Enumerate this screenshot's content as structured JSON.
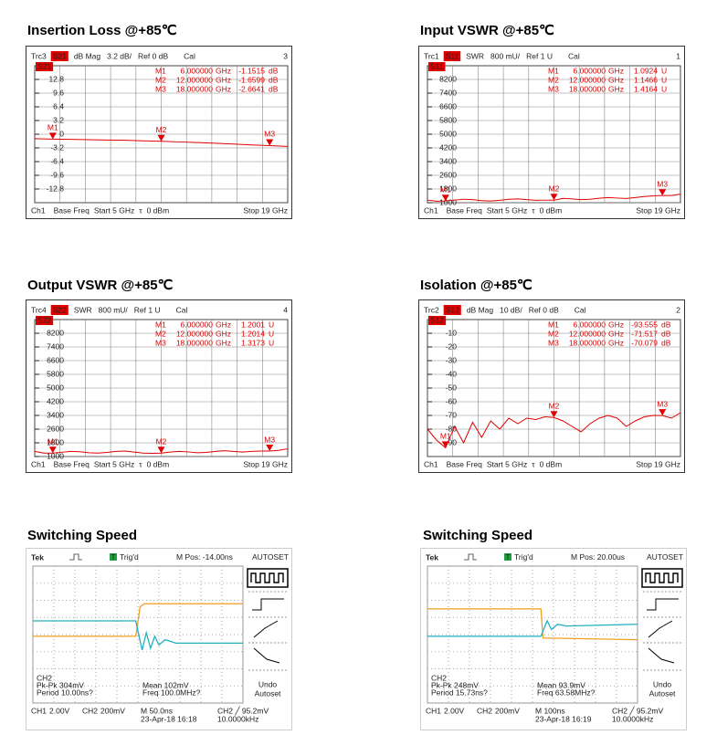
{
  "chart_data": [
    {
      "type": "line",
      "title": "Insertion Loss @+85℃",
      "header": {
        "trace": "Trc3",
        "format": "dB Mag",
        "scale": "3.2 dB/",
        "ref": "Ref 0 dB",
        "cal": "Cal",
        "number": "3"
      },
      "footer": [
        "Ch1",
        "Base Freq",
        "Start 5 GHz",
        "τ",
        "0 dBm",
        "Stop 19 GHz"
      ],
      "markers": [
        {
          "name": "M1",
          "x": 6,
          "x_label": "6.000000",
          "x_unit": "GHz",
          "y": -1.1515,
          "y_unit": "dB"
        },
        {
          "name": "M2",
          "x": 12,
          "x_label": "12.000000",
          "x_unit": "GHz",
          "y": -1.6599,
          "y_unit": "dB"
        },
        {
          "name": "M3",
          "x": 18,
          "x_label": "18.000000",
          "x_unit": "GHz",
          "y": -2.6641,
          "y_unit": "dB"
        }
      ],
      "xlim": [
        5,
        19
      ],
      "ylim": [
        -16,
        16
      ],
      "yticks": [
        12.8,
        9.6,
        6.4,
        3.2,
        0,
        -3.2,
        -6.4,
        -9.6,
        -12.8
      ],
      "x": [
        5,
        6,
        7,
        8,
        9,
        10,
        11,
        12,
        13,
        14,
        15,
        16,
        17,
        18,
        19
      ],
      "series": [
        {
          "name": "S21",
          "color": "#e00000",
          "values": [
            -1.05,
            -1.15,
            -1.2,
            -1.28,
            -1.35,
            -1.42,
            -1.55,
            -1.66,
            -1.8,
            -1.95,
            -2.1,
            -2.3,
            -2.5,
            -2.66,
            -2.85
          ]
        }
      ]
    },
    {
      "type": "line",
      "title": "Input VSWR @+85℃",
      "header": {
        "trace": "Trc1",
        "format": "SWR",
        "scale": "800 mU/",
        "ref": "Ref 1 U",
        "cal": "Cal",
        "number": "1"
      },
      "footer": [
        "Ch1",
        "Base Freq",
        "Start 5 GHz",
        "τ",
        "0 dBm",
        "Stop 19 GHz"
      ],
      "markers": [
        {
          "name": "M1",
          "x": 6,
          "x_label": "6.000000",
          "x_unit": "GHz",
          "y": 1.0924,
          "y_unit": "U"
        },
        {
          "name": "M2",
          "x": 12,
          "x_label": "12.000000",
          "x_unit": "GHz",
          "y": 1.1466,
          "y_unit": "U"
        },
        {
          "name": "M3",
          "x": 18,
          "x_label": "18.000000",
          "x_unit": "GHz",
          "y": 1.4164,
          "y_unit": "U"
        }
      ],
      "xlim": [
        5,
        19
      ],
      "ylim": [
        1,
        9
      ],
      "yticks": [
        {
          "value": 8.2,
          "label": "8200"
        },
        {
          "value": 7.4,
          "label": "7400"
        },
        {
          "value": 6.6,
          "label": "6600"
        },
        {
          "value": 5.8,
          "label": "5800"
        },
        {
          "value": 5,
          "label": "5000"
        },
        {
          "value": 4.2,
          "label": "4200"
        },
        {
          "value": 3.4,
          "label": "3400"
        },
        {
          "value": 2.6,
          "label": "2600"
        },
        {
          "value": 1.8,
          "label": "1800"
        },
        {
          "value": 1,
          "label": "1000"
        }
      ],
      "x": [
        5,
        5.5,
        6,
        6.5,
        7,
        7.5,
        8,
        8.5,
        9,
        9.5,
        10,
        10.5,
        11,
        11.5,
        12,
        12.5,
        13,
        13.5,
        14,
        14.5,
        15,
        15.5,
        16,
        16.5,
        17,
        17.5,
        18,
        18.5,
        19
      ],
      "series": [
        {
          "name": "S11",
          "color": "#e00000",
          "values": [
            1.15,
            1.09,
            1.1,
            1.15,
            1.2,
            1.18,
            1.12,
            1.1,
            1.14,
            1.2,
            1.22,
            1.18,
            1.14,
            1.15,
            1.15,
            1.25,
            1.22,
            1.18,
            1.2,
            1.26,
            1.3,
            1.27,
            1.25,
            1.3,
            1.36,
            1.4,
            1.42,
            1.42,
            1.5
          ]
        }
      ]
    },
    {
      "type": "line",
      "title": "Output VSWR @+85℃",
      "header": {
        "trace": "Trc4",
        "format": "SWR",
        "scale": "800 mU/",
        "ref": "Ref 1 U",
        "cal": "Cal",
        "number": "4"
      },
      "footer": [
        "Ch1",
        "Base Freq",
        "Start 5 GHz",
        "τ",
        "0 dBm",
        "Stop 19 GHz"
      ],
      "markers": [
        {
          "name": "M1",
          "x": 6,
          "x_label": "6.000000",
          "x_unit": "GHz",
          "y": 1.2001,
          "y_unit": "U"
        },
        {
          "name": "M2",
          "x": 12,
          "x_label": "12.000000",
          "x_unit": "GHz",
          "y": 1.2014,
          "y_unit": "U"
        },
        {
          "name": "M3",
          "x": 18,
          "x_label": "18.000000",
          "x_unit": "GHz",
          "y": 1.3173,
          "y_unit": "U"
        }
      ],
      "xlim": [
        5,
        19
      ],
      "ylim": [
        1,
        9
      ],
      "yticks": [
        {
          "value": 8.2,
          "label": "8200"
        },
        {
          "value": 7.4,
          "label": "7400"
        },
        {
          "value": 6.6,
          "label": "6600"
        },
        {
          "value": 5.8,
          "label": "5800"
        },
        {
          "value": 5,
          "label": "5000"
        },
        {
          "value": 4.2,
          "label": "4200"
        },
        {
          "value": 3.4,
          "label": "3400"
        },
        {
          "value": 2.6,
          "label": "2600"
        },
        {
          "value": 1.8,
          "label": "1800"
        },
        {
          "value": 1,
          "label": "1000"
        }
      ],
      "x": [
        5,
        5.5,
        6,
        6.5,
        7,
        7.5,
        8,
        8.5,
        9,
        9.5,
        10,
        10.5,
        11,
        11.5,
        12,
        12.5,
        13,
        13.5,
        14,
        14.5,
        15,
        15.5,
        16,
        16.5,
        17,
        17.5,
        18,
        18.5,
        19
      ],
      "series": [
        {
          "name": "S22",
          "color": "#e00000",
          "values": [
            1.3,
            1.2,
            1.2,
            1.25,
            1.3,
            1.28,
            1.22,
            1.2,
            1.24,
            1.3,
            1.32,
            1.26,
            1.2,
            1.19,
            1.2,
            1.26,
            1.3,
            1.27,
            1.22,
            1.24,
            1.3,
            1.34,
            1.3,
            1.26,
            1.3,
            1.32,
            1.32,
            1.36,
            1.45
          ]
        }
      ]
    },
    {
      "type": "line",
      "title": "Isolation @+85℃",
      "header": {
        "trace": "Trc2",
        "format": "dB Mag",
        "scale": "10 dB/",
        "ref": "Ref 0 dB",
        "cal": "Cal",
        "number": "2"
      },
      "footer": [
        "Ch1",
        "Base Freq",
        "Start 5 GHz",
        "τ",
        "0 dBm",
        "Stop 19 GHz"
      ],
      "markers": [
        {
          "name": "M1",
          "x": 6,
          "x_label": "6.000000",
          "x_unit": "GHz",
          "y": -93.555,
          "y_unit": "dB"
        },
        {
          "name": "M2",
          "x": 12,
          "x_label": "12.000000",
          "x_unit": "GHz",
          "y": -71.517,
          "y_unit": "dB"
        },
        {
          "name": "M3",
          "x": 18,
          "x_label": "18.000000",
          "x_unit": "GHz",
          "y": -70.079,
          "y_unit": "dB"
        }
      ],
      "xlim": [
        5,
        19
      ],
      "ylim": [
        -100,
        0
      ],
      "yticks": [
        -10,
        -20,
        -30,
        -40,
        -50,
        -60,
        -70,
        -80,
        -90
      ],
      "x": [
        5,
        5.5,
        6,
        6.5,
        7,
        7.5,
        8,
        8.5,
        9,
        9.5,
        10,
        10.5,
        11,
        11.5,
        12,
        12.5,
        13,
        13.5,
        14,
        14.5,
        15,
        15.5,
        16,
        16.5,
        17,
        17.5,
        18,
        18.5,
        19
      ],
      "series": [
        {
          "name": "S12",
          "color": "#e00000",
          "values": [
            -80,
            -88,
            -93.6,
            -78,
            -90,
            -75,
            -86,
            -74,
            -80,
            -72,
            -76,
            -72,
            -73,
            -71,
            -71.5,
            -74,
            -78,
            -82,
            -76,
            -72,
            -70,
            -72,
            -78,
            -74,
            -71,
            -70,
            -70.1,
            -72,
            -68
          ]
        }
      ]
    },
    {
      "type": "line",
      "title": "Switching Speed",
      "header": {
        "brand": "Tek",
        "trigger_box": "T",
        "trigger": "Trig'd",
        "position": "M Pos: -14.00ns",
        "menu": "AUTOSET"
      },
      "menu_button": [
        "Undo",
        "Autoset"
      ],
      "readout": {
        "pkpk": "Pk-Pk 304mV",
        "period": "Period 10.00ns?",
        "mean": "Mean 102mV",
        "freq": "Freq 100.0MHz?"
      },
      "status": {
        "ch1_scale": "2.00V",
        "ch2_scale": "200mV",
        "timebase": "M 50.0ns",
        "date": "23-Apr-18 16:18",
        "trigger_level": "CH2 ╱ 95.2mV",
        "trigger_freq": "10.0000kHz"
      },
      "xlim": [
        0,
        10
      ],
      "ylim": [
        -4,
        4
      ],
      "series": [
        {
          "name": "CH1",
          "color": "#f0a020",
          "x": [
            0,
            4.9,
            5.1,
            5.3,
            10
          ],
          "values": [
            -0.1,
            -0.1,
            1.6,
            1.8,
            1.8
          ]
        },
        {
          "name": "CH2",
          "color": "#20b0c0",
          "x": [
            0,
            4.9,
            5.0,
            5.2,
            5.4,
            5.6,
            5.8,
            6.0,
            6.3,
            6.8,
            10
          ],
          "values": [
            0.8,
            0.8,
            0.2,
            -0.9,
            0.1,
            -0.8,
            -0.1,
            -0.6,
            -0.3,
            -0.5,
            -0.5
          ]
        }
      ]
    },
    {
      "type": "line",
      "title": "Switching Speed",
      "header": {
        "brand": "Tek",
        "trigger_box": "T",
        "trigger": "Trig'd",
        "position": "M Pos: 20.00us",
        "menu": "AUTOSET"
      },
      "menu_button": [
        "Undo",
        "Autoset"
      ],
      "readout": {
        "pkpk": "Pk-Pk 248mV",
        "period": "Period 15.73ns?",
        "mean": "Mean 93.9mV",
        "freq": "Freq 63.58MHz?"
      },
      "status": {
        "ch1_scale": "2.00V",
        "ch2_scale": "200mV",
        "timebase": "M 100ns",
        "date": "23-Apr-18 16:19",
        "trigger_level": "CH2 ╱ 95.2mV",
        "trigger_freq": "10.0000kHz"
      },
      "xlim": [
        0,
        10
      ],
      "ylim": [
        -4,
        4
      ],
      "series": [
        {
          "name": "CH1",
          "color": "#f0a020",
          "x": [
            0,
            5.4,
            5.5,
            10
          ],
          "values": [
            1.5,
            1.5,
            -0.2,
            -0.3
          ]
        },
        {
          "name": "CH2",
          "color": "#20b0c0",
          "x": [
            0,
            5.4,
            5.5,
            5.7,
            5.9,
            6.2,
            6.6,
            10
          ],
          "values": [
            -0.1,
            -0.1,
            0.2,
            0.8,
            0.3,
            0.6,
            0.5,
            0.6
          ]
        }
      ]
    }
  ]
}
